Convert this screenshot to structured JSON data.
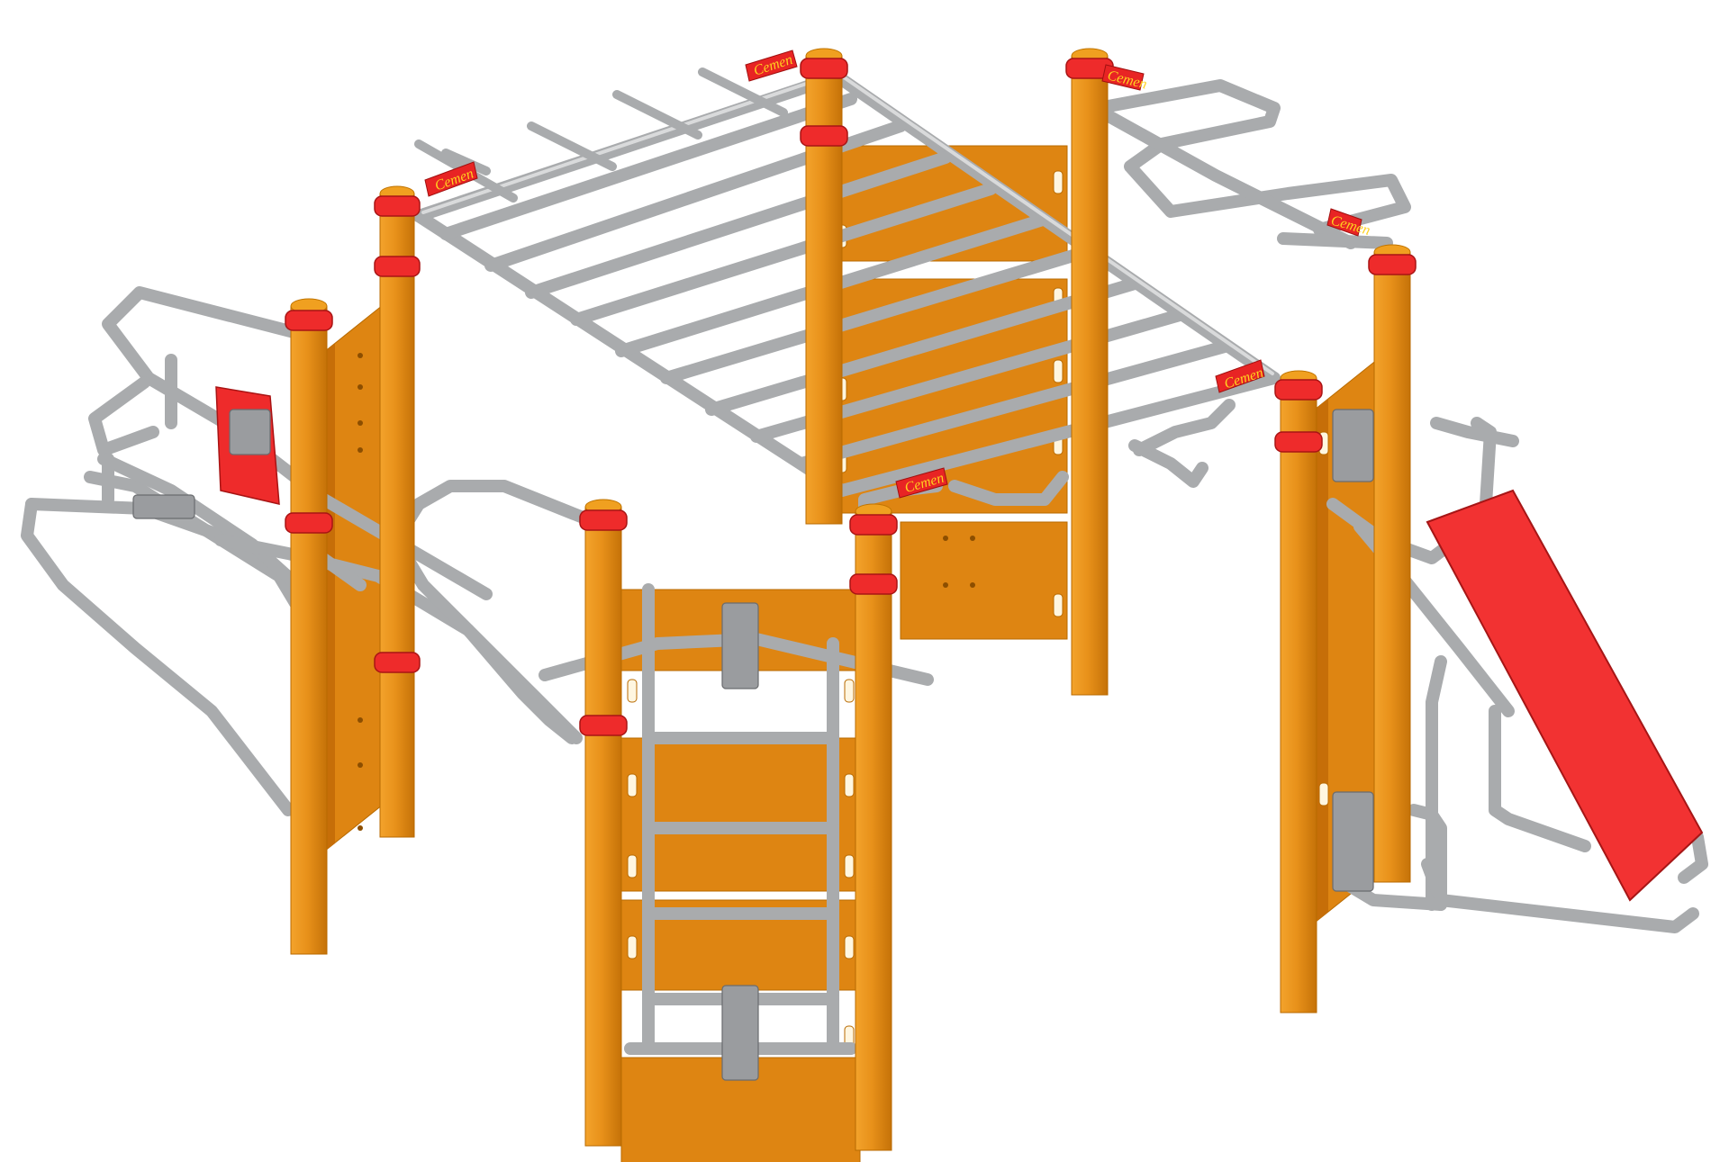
{
  "scene": {
    "background": "#ffffff",
    "colors": {
      "post": "#e8911a",
      "panel": "#de8512",
      "bars": "#a9abad",
      "clamps": "#ee2b2b",
      "board": "#f23232",
      "logo_text": "#ffd21f"
    }
  },
  "brand": {
    "logo_text": "Cemen"
  }
}
